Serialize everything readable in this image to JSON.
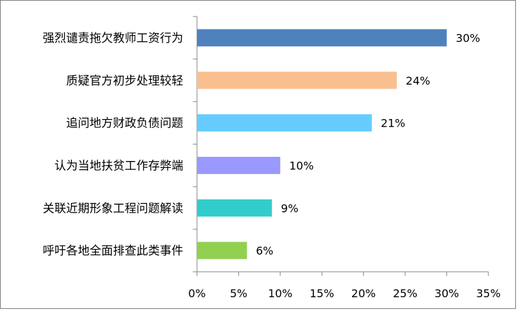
{
  "chart_data": {
    "type": "bar",
    "orientation": "horizontal",
    "categories": [
      "强烈谴责拖欠教师工资行为",
      "质疑官方初步处理较轻",
      "追问地方财政负债问题",
      "认为当地扶贫工作存弊端",
      "关联近期形象工程问题解读",
      "呼吁各地全面排查此类事件"
    ],
    "values": [
      30,
      24,
      21,
      10,
      9,
      6
    ],
    "value_labels": [
      "30%",
      "24%",
      "21%",
      "10%",
      "9%",
      "6%"
    ],
    "colors": [
      "#4f81bd",
      "#fac090",
      "#66ccff",
      "#9999ff",
      "#33cccc",
      "#92d050"
    ],
    "xlim": [
      0,
      35
    ],
    "xticks": [
      0,
      5,
      10,
      15,
      20,
      25,
      30,
      35
    ],
    "xtick_labels": [
      "0%",
      "5%",
      "10%",
      "15%",
      "20%",
      "25%",
      "30%",
      "35%"
    ],
    "title": "",
    "xlabel": "",
    "ylabel": "",
    "grid": false,
    "legend": "none"
  }
}
